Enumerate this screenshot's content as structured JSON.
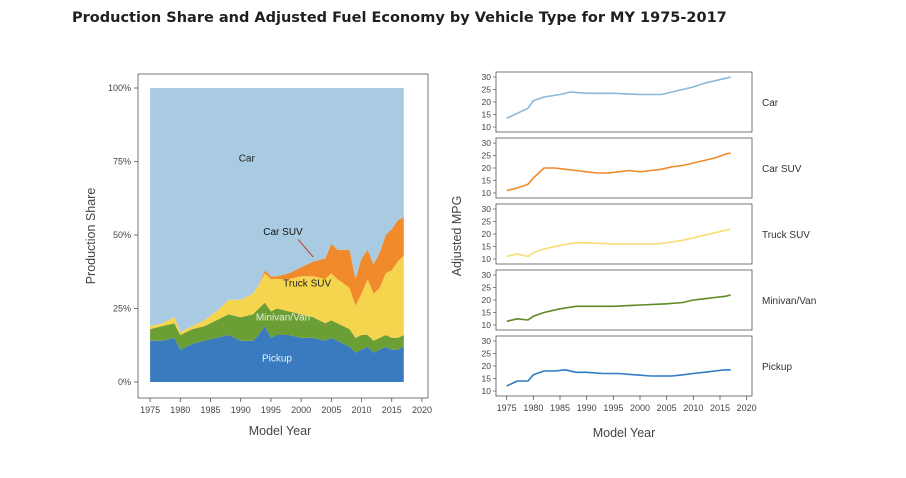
{
  "page": {
    "title": "Production Share and Adjusted Fuel Economy by Vehicle Type for MY 1975-2017"
  },
  "colors": {
    "car": "#a9cbe2",
    "car_suv": "#f08a2b",
    "truck_suv": "#f6d54e",
    "minivan_van": "#6b9e34",
    "pickup": "#3a7bc0",
    "car_line": "#8ab8d9",
    "truck_suv_line": "#f7dd73",
    "minivan_line": "#5f8a25",
    "pickup_line": "#2f7bc4",
    "axis": "#444444"
  },
  "chart_data": [
    {
      "type": "area",
      "stacked": true,
      "xlabel": "Model Year",
      "ylabel": "Production Share",
      "xlim": [
        1973,
        2021
      ],
      "ylim": [
        0,
        100
      ],
      "x_ticks": [
        1975,
        1980,
        1985,
        1990,
        1995,
        2000,
        2005,
        2010,
        2015,
        2020
      ],
      "y_ticks": [
        0,
        25,
        50,
        75,
        100
      ],
      "y_tick_labels": [
        "0%",
        "25%",
        "50%",
        "75%",
        "100%"
      ],
      "x": [
        1975,
        1977,
        1979,
        1980,
        1982,
        1984,
        1986,
        1988,
        1990,
        1992,
        1993,
        1994,
        1995,
        1996,
        1998,
        2000,
        2002,
        2004,
        2005,
        2006,
        2008,
        2009,
        2010,
        2011,
        2012,
        2013,
        2014,
        2015,
        2016,
        2017
      ],
      "series": [
        {
          "name": "Pickup",
          "values": [
            14,
            14,
            15,
            11,
            13,
            14,
            15,
            16,
            14,
            14,
            16,
            19,
            15,
            16,
            16,
            15,
            15,
            14,
            15,
            14,
            12,
            10,
            11,
            12,
            10,
            11,
            12,
            11,
            11,
            12
          ]
        },
        {
          "name": "Minivan/Van",
          "values": [
            4,
            5,
            5,
            5,
            5,
            5,
            6,
            7,
            8,
            9,
            9,
            8,
            9,
            9,
            8,
            8,
            7,
            6,
            6,
            6,
            6,
            5,
            5,
            4,
            4,
            4,
            4,
            4,
            4,
            4
          ]
        },
        {
          "name": "Truck SUV",
          "values": [
            1,
            1,
            2,
            1,
            1,
            2,
            3,
            5,
            6,
            7,
            8,
            10,
            11,
            10,
            11,
            13,
            14,
            15,
            16,
            15,
            14,
            11,
            14,
            19,
            16,
            17,
            21,
            23,
            26,
            27
          ]
        },
        {
          "name": "Car SUV",
          "values": [
            0,
            0,
            0,
            0,
            0,
            0,
            0,
            0,
            0,
            0,
            0,
            1,
            1,
            1,
            2,
            3,
            5,
            7,
            10,
            10,
            13,
            9,
            12,
            10,
            10,
            12,
            13,
            14,
            14,
            13
          ]
        },
        {
          "name": "Car",
          "values": [
            81,
            80,
            78,
            83,
            81,
            79,
            76,
            72,
            72,
            70,
            67,
            62,
            64,
            64,
            63,
            61,
            59,
            58,
            53,
            55,
            55,
            65,
            58,
            55,
            60,
            56,
            50,
            48,
            45,
            44
          ]
        }
      ],
      "labels": [
        "Car",
        "Car SUV",
        "Truck SUV",
        "Minivan/Van",
        "Pickup"
      ]
    },
    {
      "type": "line",
      "xlabel": "Model Year",
      "ylabel": "Adjusted MPG",
      "xlim": [
        1973,
        2021
      ],
      "ylim": [
        8,
        32
      ],
      "x_ticks": [
        1975,
        1980,
        1985,
        1990,
        1995,
        2000,
        2005,
        2010,
        2015,
        2020
      ],
      "y_ticks": [
        10,
        15,
        20,
        25,
        30
      ],
      "panels": [
        {
          "name": "Car",
          "x": [
            1975,
            1977,
            1979,
            1980,
            1982,
            1985,
            1987,
            1990,
            1995,
            2000,
            2004,
            2006,
            2008,
            2010,
            2012,
            2014,
            2016,
            2017
          ],
          "values": [
            13.5,
            15.5,
            17.5,
            20.5,
            22,
            23,
            24,
            23.5,
            23.5,
            23,
            23,
            24,
            25,
            26,
            27.5,
            28.5,
            29.5,
            30
          ]
        },
        {
          "name": "Car SUV",
          "x": [
            1975,
            1977,
            1979,
            1980,
            1981,
            1982,
            1984,
            1986,
            1988,
            1990,
            1992,
            1994,
            1996,
            1998,
            2000,
            2002,
            2004,
            2006,
            2008,
            2010,
            2012,
            2014,
            2016,
            2017
          ],
          "values": [
            11,
            12,
            13.5,
            16,
            18,
            20,
            20,
            19.5,
            19,
            18.5,
            18,
            18,
            18.5,
            19,
            18.5,
            19,
            19.5,
            20.5,
            21,
            22,
            23,
            24,
            25.5,
            26
          ]
        },
        {
          "name": "Truck SUV",
          "x": [
            1975,
            1977,
            1979,
            1980,
            1982,
            1985,
            1988,
            1990,
            1995,
            2000,
            2003,
            2005,
            2008,
            2010,
            2012,
            2014,
            2016,
            2017
          ],
          "values": [
            11,
            12,
            11,
            12.5,
            14,
            15.5,
            16.5,
            16.5,
            16,
            16,
            16,
            16.5,
            17.5,
            18.5,
            19.5,
            20.5,
            21.5,
            22
          ]
        },
        {
          "name": "Minivan/Van",
          "x": [
            1975,
            1977,
            1979,
            1980,
            1982,
            1985,
            1988,
            1990,
            1995,
            2000,
            2005,
            2008,
            2010,
            2012,
            2014,
            2016,
            2017
          ],
          "values": [
            11.5,
            12.5,
            12,
            13.5,
            15,
            16.5,
            17.5,
            17.5,
            17.5,
            18,
            18.5,
            19,
            20,
            20.5,
            21,
            21.5,
            22
          ]
        },
        {
          "name": "Pickup",
          "x": [
            1975,
            1977,
            1979,
            1980,
            1982,
            1984,
            1986,
            1988,
            1990,
            1993,
            1996,
            1999,
            2002,
            2004,
            2006,
            2008,
            2010,
            2012,
            2014,
            2016,
            2017
          ],
          "values": [
            12,
            14,
            14,
            16.5,
            18,
            18,
            18.5,
            17.5,
            17.5,
            17,
            17,
            16.5,
            16,
            16,
            16,
            16.5,
            17,
            17.5,
            18,
            18.5,
            18.5
          ]
        }
      ]
    }
  ]
}
